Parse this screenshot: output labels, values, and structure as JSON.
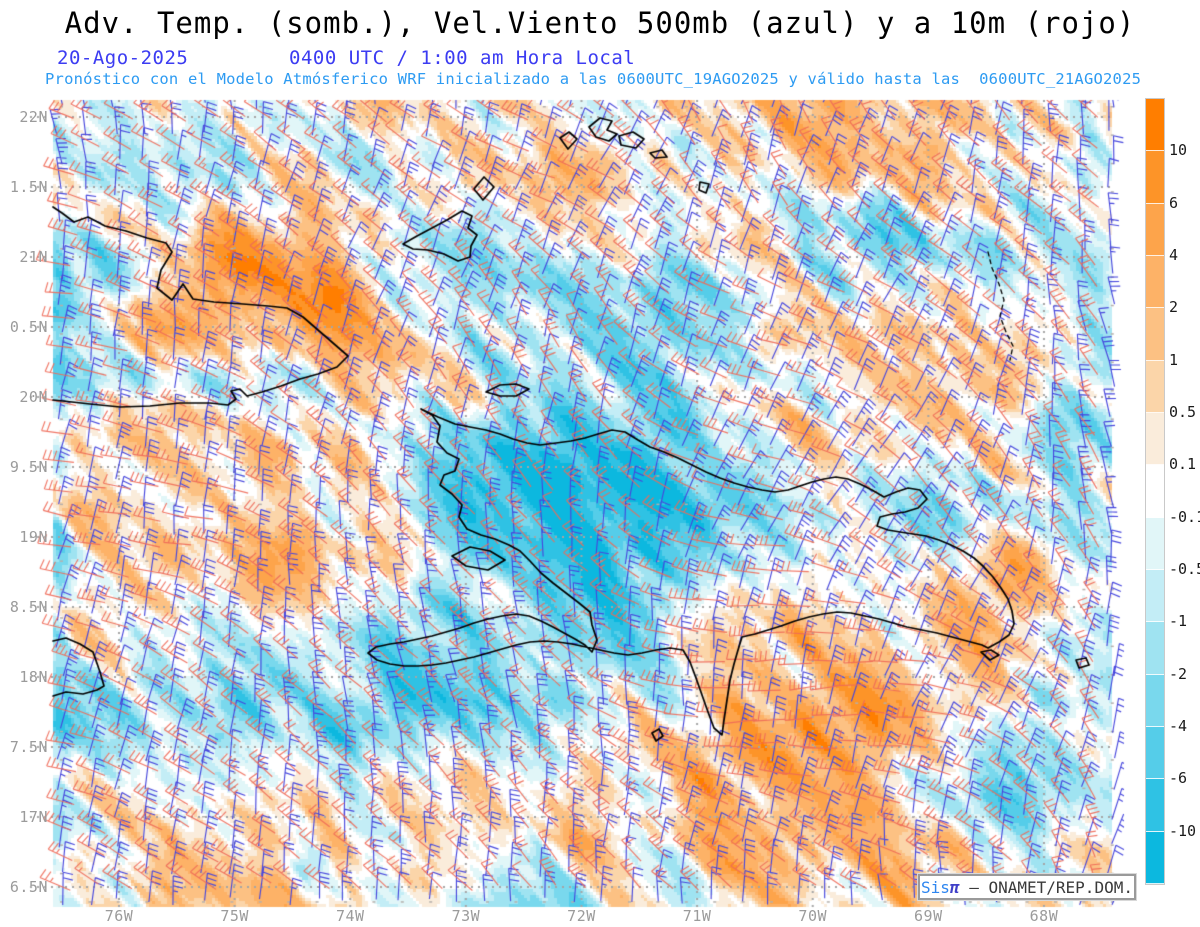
{
  "title": "Adv. Temp. (somb.), Vel.Viento 500mb (azul) y a 10m (rojo)",
  "header": {
    "date": "20-Ago-2025",
    "time_line": "0400 UTC / 1:00 am Hora Local",
    "forecast_line": "Pronóstico con el Modelo Atmósferico WRF inicializado a las 0600UTC_19AGO2025 y válido hasta las  0600UTC_21AGO2025"
  },
  "map": {
    "lat_labels": [
      "22N",
      "1.5N",
      "21N",
      "0.5N",
      "20N",
      "9.5N",
      "19N",
      "8.5N",
      "18N",
      "7.5N",
      "17N",
      "6.5N"
    ],
    "lon_labels": [
      "76W",
      "75W",
      "74W",
      "73W",
      "72W",
      "71W",
      "70W",
      "69W",
      "68W"
    ]
  },
  "colorbar": {
    "tick_labels": [
      "10",
      "6",
      "4",
      "2",
      "1",
      "0.5",
      "0.1",
      "-0.1",
      "-0.5",
      "-1",
      "-2",
      "-4",
      "-6",
      "-10"
    ],
    "segment_colors": [
      "#ff7e00",
      "#fd9428",
      "#fda44b",
      "#fdb267",
      "#fcc183",
      "#fbd5a9",
      "#faecdb",
      "#ffffff",
      "#e1f6f8",
      "#c3edf6",
      "#9fe3f1",
      "#79d8ed",
      "#55cde9",
      "#2fc2e4",
      "#0cb8df"
    ]
  },
  "watermark": {
    "sis": "Sis",
    "pi": "π",
    "text": " – ONAMET/REP.DOM."
  },
  "colors": {
    "title": "#000000",
    "header_blue": "#3c3cf2",
    "forecast_blue": "#2d9bf2",
    "axis_label": "#9b9b9b",
    "wind_500mb": "#4747dd",
    "wind_10m": "#ef6a58",
    "coastline": "#000000",
    "grid_dots": "#a5a5a5",
    "watermark_sis": "#2e86f0",
    "watermark_pi": "#4040c8",
    "watermark_text": "#3a3a3a"
  }
}
